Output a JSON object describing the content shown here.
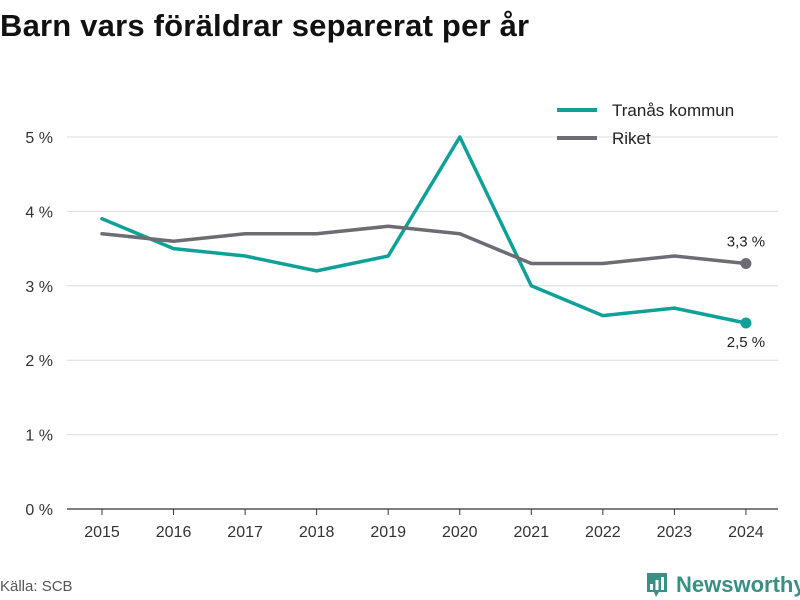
{
  "chart_data": {
    "type": "line",
    "title": "Barn vars föräldrar separerat per år",
    "x": [
      "2015",
      "2016",
      "2017",
      "2018",
      "2019",
      "2020",
      "2021",
      "2022",
      "2023",
      "2024"
    ],
    "ylim": [
      0,
      5
    ],
    "yticks": [
      0,
      1,
      2,
      3,
      4,
      5
    ],
    "ytick_labels": [
      "0 %",
      "1 %",
      "2 %",
      "3 %",
      "4 %",
      "5 %"
    ],
    "grid": true,
    "legend_position": "top-right",
    "series": [
      {
        "name": "Tranås kommun",
        "color": "#0fa197",
        "values": [
          3.9,
          3.5,
          3.4,
          3.2,
          3.4,
          5.0,
          3.0,
          2.6,
          2.7,
          2.5
        ],
        "end_label": "2,5 %"
      },
      {
        "name": "Riket",
        "color": "#6d6c74",
        "values": [
          3.7,
          3.6,
          3.7,
          3.7,
          3.8,
          3.7,
          3.3,
          3.3,
          3.4,
          3.3
        ],
        "end_label": "3,3 %"
      }
    ]
  },
  "footer": {
    "source": "Källa: SCB",
    "brand": "Newsworthy",
    "brand_color": "#3a8f84",
    "brand_icon": "newsworthy-logo-icon"
  }
}
